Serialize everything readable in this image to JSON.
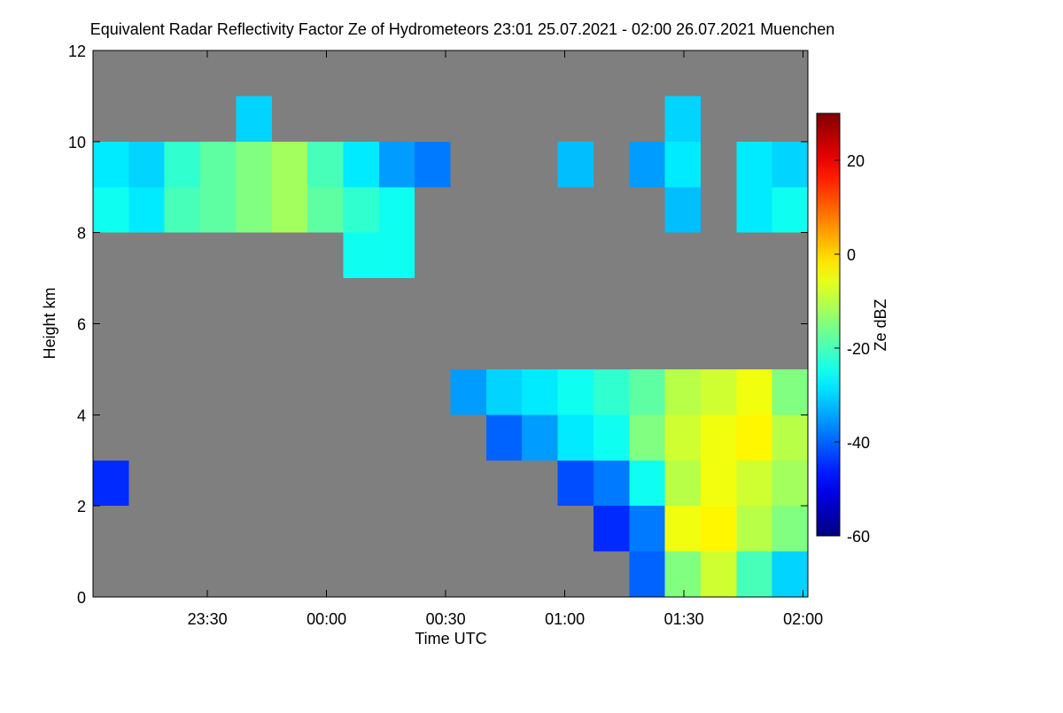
{
  "chart_data": {
    "type": "heatmap",
    "title": "Equivalent Radar Reflectivity Factor Ze of Hydrometeors   23:01 25.07.2021 - 02:00 26.07.2021 Muenchen",
    "x_label": "Time UTC",
    "y_label": "Height km",
    "colorbar_label": "Ze dBZ",
    "colormap": "jet",
    "background": "#7f7f7f",
    "xlim": [
      23.02,
      26.02
    ],
    "xticks": [
      {
        "value": 23.5,
        "label": "23:30"
      },
      {
        "value": 24,
        "label": "00:00"
      },
      {
        "value": 24.5,
        "label": "00:30"
      },
      {
        "value": 25,
        "label": "01:00"
      },
      {
        "value": 25.5,
        "label": "01:30"
      },
      {
        "value": 26,
        "label": "02:00"
      }
    ],
    "ylim": [
      0,
      12
    ],
    "yticks": [
      0,
      2,
      4,
      6,
      8,
      10,
      12
    ],
    "zlim": [
      -60,
      30
    ],
    "zticks": [
      -60,
      -40,
      -20,
      0,
      20
    ],
    "x": [
      23.095,
      23.245,
      23.395,
      23.545,
      23.695,
      23.845,
      23.995,
      24.145,
      24.295,
      24.445,
      24.595,
      24.745,
      24.895,
      25.045,
      25.195,
      25.345,
      25.495,
      25.645,
      25.795,
      25.945
    ],
    "y": [
      0.5,
      1.5,
      2.5,
      3.5,
      4.5,
      5.5,
      6.5,
      7.5,
      8.5,
      9.5,
      10.5,
      11.5
    ],
    "z": [
      [
        null,
        null,
        null,
        null,
        null,
        null,
        null,
        null,
        null,
        null,
        null,
        null,
        null,
        null,
        null,
        -40,
        -15,
        -8,
        -20,
        -30
      ],
      [
        null,
        null,
        null,
        null,
        null,
        null,
        null,
        null,
        null,
        null,
        null,
        null,
        null,
        null,
        -45,
        -38,
        -5,
        -3,
        -10,
        -15
      ],
      [
        -45,
        null,
        null,
        null,
        null,
        null,
        null,
        null,
        null,
        null,
        null,
        null,
        null,
        -42,
        -38,
        -25,
        -10,
        -5,
        -8,
        -12
      ],
      [
        null,
        null,
        null,
        null,
        null,
        null,
        null,
        null,
        null,
        null,
        null,
        -40,
        -35,
        -28,
        -25,
        -15,
        -8,
        -5,
        -3,
        -10
      ],
      [
        null,
        null,
        null,
        null,
        null,
        null,
        null,
        null,
        null,
        null,
        -35,
        -30,
        -28,
        -25,
        -22,
        -18,
        -10,
        -8,
        -5,
        -15
      ],
      [
        null,
        null,
        null,
        null,
        null,
        null,
        null,
        null,
        null,
        null,
        null,
        null,
        null,
        null,
        null,
        null,
        null,
        null,
        null,
        null
      ],
      [
        null,
        null,
        null,
        null,
        null,
        null,
        null,
        null,
        null,
        null,
        null,
        null,
        null,
        null,
        null,
        null,
        null,
        null,
        null,
        null
      ],
      [
        null,
        null,
        null,
        null,
        null,
        null,
        null,
        -25,
        -25,
        null,
        null,
        null,
        null,
        null,
        null,
        null,
        null,
        null,
        null,
        null
      ],
      [
        -25,
        -28,
        -20,
        -18,
        -15,
        -12,
        -18,
        -22,
        -25,
        null,
        null,
        null,
        null,
        null,
        null,
        null,
        -32,
        null,
        -28,
        -25
      ],
      [
        -28,
        -30,
        -22,
        -18,
        -15,
        -12,
        -20,
        -28,
        -35,
        -38,
        null,
        null,
        null,
        -32,
        null,
        -35,
        -28,
        null,
        -28,
        -30
      ],
      [
        null,
        null,
        null,
        null,
        -30,
        null,
        null,
        null,
        null,
        null,
        null,
        null,
        null,
        null,
        null,
        null,
        -30,
        null,
        null,
        null
      ],
      [
        null,
        null,
        null,
        null,
        null,
        null,
        null,
        null,
        null,
        null,
        null,
        null,
        null,
        null,
        null,
        null,
        null,
        null,
        null,
        null
      ]
    ]
  }
}
